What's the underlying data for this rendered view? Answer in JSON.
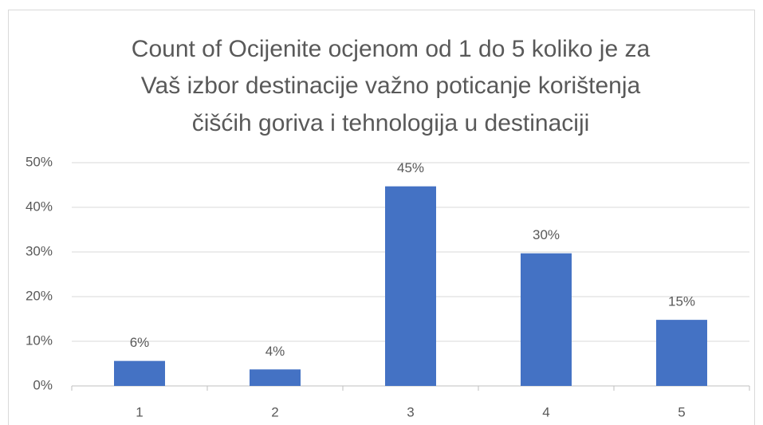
{
  "chart_data": {
    "type": "bar",
    "title": [
      "Count of Ocijenite ocjenom od 1 do 5 koliko je za",
      "Vaš izbor destinacije važno poticanje korištenja",
      "čišćih goriva i tehnologija u destinaciji"
    ],
    "categories": [
      "1",
      "2",
      "3",
      "4",
      "5"
    ],
    "values": [
      5.6,
      3.7,
      44.7,
      29.7,
      14.8
    ],
    "value_labels": [
      "6%",
      "4%",
      "45%",
      "30%",
      "15%"
    ],
    "color": "#4472c4",
    "ylim": [
      0,
      50
    ],
    "yticks": [
      {
        "value": 0,
        "label": "0%"
      },
      {
        "value": 10,
        "label": "10%"
      },
      {
        "value": 20,
        "label": "20%"
      },
      {
        "value": 30,
        "label": "30%"
      },
      {
        "value": 40,
        "label": "40%"
      },
      {
        "value": 50,
        "label": "50%"
      }
    ],
    "grid": true
  }
}
